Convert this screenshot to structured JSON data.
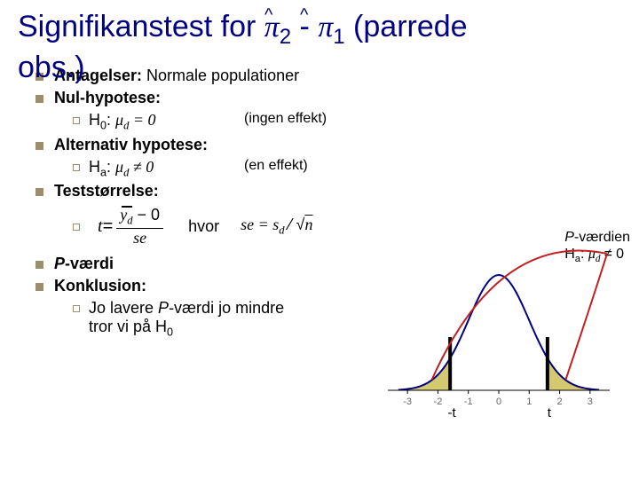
{
  "title": {
    "text_line1_pre": "Signifikanstest for ",
    "pi2": "π",
    "sub2": "2",
    "sep": " - ",
    "pi1": "π",
    "sub1": "1",
    "text_line1_post": " (parrede",
    "text_line2": "obs.)"
  },
  "bullets": {
    "b1": {
      "bold": "Antagelser:",
      "rest": " Normale populationer"
    },
    "b2": {
      "bold": "Nul-hypotese:",
      "rest": ""
    },
    "b2sub": {
      "h0": "H",
      "zero": "0",
      "colon": ": ",
      "mud": "μ",
      "d": "d",
      "eq": " = 0",
      "note": "(ingen effekt)"
    },
    "b3": {
      "bold": "Alternativ hypotese:",
      "rest": ""
    },
    "b3sub": {
      "ha": "H",
      "a": "a",
      "colon": ": ",
      "mud": "μ",
      "d": "d",
      "neq": " ≠ 0",
      "note": "(en effekt)"
    },
    "b4": {
      "bold": "Teststørrelse:",
      "rest": ""
    },
    "b4formula": {
      "t": "t",
      "eq": " = ",
      "top_y": "y",
      "top_d": "d",
      "top_rest": " − 0",
      "bot": "se",
      "hvor": "hvor",
      "se_eq": "se = s",
      "se_d": "d",
      "sqrt": " ⁄ √",
      "n": "n"
    },
    "b5": {
      "bold_i": "P",
      "bold_rest": "-værdi",
      "rest": ""
    },
    "b6": {
      "bold": "Konklusion:",
      "rest": ""
    },
    "b6sub1": "Jo lavere ",
    "b6sub_p": "P",
    "b6sub2": "-værdi jo mindre",
    "b6sub3": "tror vi på H",
    "b6sub3_zero": "0"
  },
  "annotation": {
    "line1_p": "P",
    "line1_rest": "-værdien",
    "line2_h": "H",
    "line2_a": "a",
    "line2_colon": ": ",
    "line2_mu": "μ",
    "line2_d": "d",
    "line2_neq": " ≠ 0"
  },
  "chart": {
    "x_ticks": [
      "-3",
      "-2",
      "-1",
      "0",
      "1",
      "2",
      "3"
    ],
    "tick_t_neg": "-t",
    "tick_t_pos": "t",
    "curve_color": "#000080",
    "tail_fill": "#d4c870",
    "axis_color": "#000000",
    "indicator_color": "#c02020",
    "bar_color": "#000000",
    "background": "#ffffff"
  }
}
